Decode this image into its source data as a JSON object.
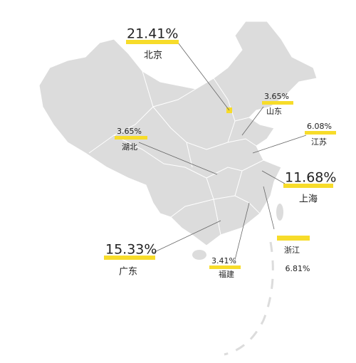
{
  "regions": [
    {
      "name": "北京",
      "share": "21.41%"
    },
    {
      "name": "山东",
      "share": "3.65%"
    },
    {
      "name": "江苏",
      "share": "6.08%"
    },
    {
      "name": "湖北",
      "share": "3.65%"
    },
    {
      "name": "上海",
      "share": "11.68%"
    },
    {
      "name": "广东",
      "share": "15.33%"
    },
    {
      "name": "福建",
      "share": "3.41%"
    },
    {
      "name": "浙江",
      "share": "6.81%"
    }
  ]
}
